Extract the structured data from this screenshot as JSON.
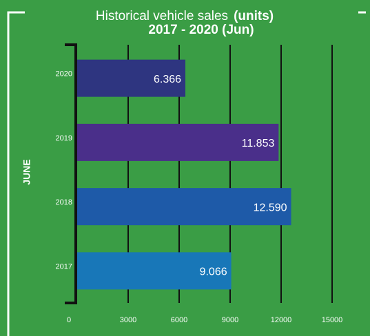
{
  "chart_data": {
    "type": "bar",
    "orientation": "horizontal",
    "title": "Historical vehicle sales",
    "unit": "(units)",
    "subtitle": "2017 - 2020 (Jun)",
    "y_label": "JUNE",
    "categories": [
      "2020",
      "2019",
      "2018",
      "2017"
    ],
    "values": [
      6366,
      11853,
      12590,
      9066
    ],
    "value_labels": [
      "6.366",
      "11.853",
      "12.590",
      "9.066"
    ],
    "colors": [
      "#2e3580",
      "#4a2f8a",
      "#1e5aa8",
      "#1877b8"
    ],
    "xlim": [
      0,
      15000
    ],
    "xticks": [
      0,
      3000,
      6000,
      9000,
      12000,
      15000
    ],
    "grid": true
  }
}
